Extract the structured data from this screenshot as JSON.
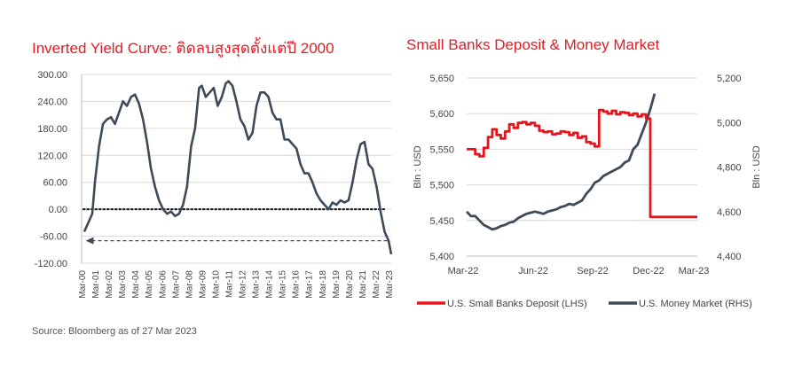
{
  "source_note": "Source: Bloomberg as of 27 Mar 2023",
  "colors": {
    "title": "#e31b23",
    "series_dark": "#3d4a57",
    "series_red": "#e8141c"
  },
  "chart_data": [
    {
      "type": "line",
      "title": "Inverted Yield Curve: ติดลบสูงสุดตั้งแต่ปี 2000",
      "ylim": [
        -120,
        300
      ],
      "y_ticks": [
        "300.00",
        "240.00",
        "180.00",
        "120.00",
        "60.00",
        "0.00",
        "-60.00",
        "-120.00"
      ],
      "x_ticks": [
        "Mar-00",
        "Mar-01",
        "Mar-02",
        "Mar-03",
        "Mar-04",
        "Mar-05",
        "Mar-06",
        "Mar-07",
        "Mar-08",
        "Mar-09",
        "Mar-10",
        "Mar-11",
        "Mar-12",
        "Mar-13",
        "Mar-14",
        "Mar-15",
        "Mar-16",
        "Mar-17",
        "Mar-18",
        "Mar-19",
        "Mar-20",
        "Mar-21",
        "Mar-22",
        "Mar-23"
      ],
      "grid": true,
      "series": [
        {
          "color": "#3d4a57",
          "x": [
            2000.2,
            2000.5,
            2000.8,
            2001.0,
            2001.3,
            2001.6,
            2001.9,
            2002.2,
            2002.5,
            2002.8,
            2003.1,
            2003.4,
            2003.7,
            2004.0,
            2004.3,
            2004.6,
            2004.9,
            2005.2,
            2005.5,
            2005.8,
            2006.1,
            2006.4,
            2006.7,
            2007.0,
            2007.3,
            2007.6,
            2007.9,
            2008.2,
            2008.5,
            2008.8,
            2009.0,
            2009.3,
            2009.6,
            2009.9,
            2010.2,
            2010.5,
            2010.8,
            2011.0,
            2011.3,
            2011.6,
            2011.9,
            2012.2,
            2012.5,
            2012.8,
            2013.1,
            2013.4,
            2013.7,
            2014.0,
            2014.3,
            2014.6,
            2014.9,
            2015.2,
            2015.5,
            2015.8,
            2016.1,
            2016.4,
            2016.7,
            2017.0,
            2017.3,
            2017.6,
            2017.9,
            2018.2,
            2018.5,
            2018.8,
            2019.1,
            2019.4,
            2019.7,
            2020.0,
            2020.3,
            2020.6,
            2020.9,
            2021.2,
            2021.5,
            2021.8,
            2022.1,
            2022.4,
            2022.7,
            2023.0,
            2023.2
          ],
          "y": [
            -50,
            -30,
            -10,
            60,
            140,
            190,
            200,
            205,
            190,
            215,
            240,
            230,
            250,
            255,
            235,
            200,
            150,
            90,
            50,
            20,
            0,
            -10,
            -5,
            -15,
            -10,
            10,
            50,
            140,
            180,
            270,
            275,
            250,
            260,
            270,
            230,
            250,
            280,
            285,
            275,
            240,
            200,
            185,
            155,
            170,
            230,
            260,
            260,
            250,
            215,
            200,
            200,
            155,
            155,
            145,
            135,
            100,
            80,
            80,
            60,
            35,
            20,
            10,
            0,
            15,
            10,
            20,
            15,
            20,
            60,
            110,
            145,
            150,
            100,
            90,
            50,
            -5,
            -50,
            -70,
            -100
          ]
        }
      ],
      "reference_line": {
        "y": 0,
        "style": "dotted"
      },
      "annotation_arrow": {
        "y": -70,
        "from_x": 2022.9,
        "to_x": 2000.3
      }
    },
    {
      "type": "line",
      "title": "Small Banks Deposit & Money Market",
      "x_ticks": [
        "Mar-22",
        "Jun-22",
        "Sep-22",
        "Dec-22",
        "Mar-23"
      ],
      "ylabel_left": "Bln : USD",
      "ylabel_right": "Bln : USD",
      "ylim_left": [
        5400,
        5650
      ],
      "ylim_right": [
        4400,
        5200
      ],
      "y_ticks_left": [
        "5,650",
        "5,600",
        "5,550",
        "5,500",
        "5,450",
        "5,400"
      ],
      "y_ticks_right": [
        "5,200",
        "5,000",
        "4,800",
        "4,600",
        "4,400"
      ],
      "legend_position": "bottom",
      "series": [
        {
          "name": "U.S. Small Banks Deposit (LHS)",
          "axis": "left",
          "color": "#e8141c",
          "x": [
            0,
            2,
            3,
            4,
            5,
            6,
            7,
            8,
            9,
            10,
            11,
            12,
            13,
            14,
            15,
            16,
            17,
            18,
            19,
            20,
            21,
            22,
            23,
            24,
            25,
            26,
            27,
            28,
            29,
            30,
            31,
            32,
            33,
            34,
            35,
            36,
            37,
            38,
            39,
            40,
            41,
            42,
            43,
            44,
            45,
            46,
            47,
            48,
            49,
            50,
            51,
            52,
            53,
            54
          ],
          "y": [
            5550,
            5543,
            5540,
            5552,
            5567,
            5578,
            5570,
            5565,
            5575,
            5585,
            5580,
            5587,
            5588,
            5585,
            5587,
            5583,
            5576,
            5574,
            5575,
            5571,
            5572,
            5575,
            5574,
            5570,
            5573,
            5566,
            5568,
            5560,
            5558,
            5554,
            5605,
            5603,
            5600,
            5604,
            5599,
            5602,
            5601,
            5598,
            5600,
            5596,
            5599,
            5593,
            5455,
            5455,
            5455,
            5455,
            5455,
            5455,
            5455,
            5455,
            5455,
            5455,
            5455,
            5455
          ]
        },
        {
          "name": "U.S. Money Market (RHS)",
          "axis": "right",
          "color": "#3d4a57",
          "x": [
            0,
            1,
            2,
            3,
            4,
            5,
            6,
            7,
            8,
            9,
            10,
            11,
            12,
            13,
            14,
            15,
            16,
            17,
            18,
            19,
            20,
            21,
            22,
            23,
            24,
            25,
            26,
            27,
            28,
            29,
            30,
            31,
            32,
            33,
            34,
            35,
            36,
            37,
            38,
            39,
            40,
            41,
            42,
            43,
            44
          ],
          "y": [
            4600,
            4580,
            4580,
            4560,
            4540,
            4530,
            4520,
            4525,
            4535,
            4540,
            4550,
            4555,
            4570,
            4580,
            4590,
            4595,
            4600,
            4595,
            4590,
            4600,
            4605,
            4610,
            4620,
            4625,
            4635,
            4630,
            4640,
            4650,
            4680,
            4700,
            4730,
            4740,
            4760,
            4770,
            4780,
            4790,
            4800,
            4820,
            4830,
            4880,
            4900,
            4950,
            5000,
            5060,
            5130
          ]
        }
      ]
    }
  ]
}
